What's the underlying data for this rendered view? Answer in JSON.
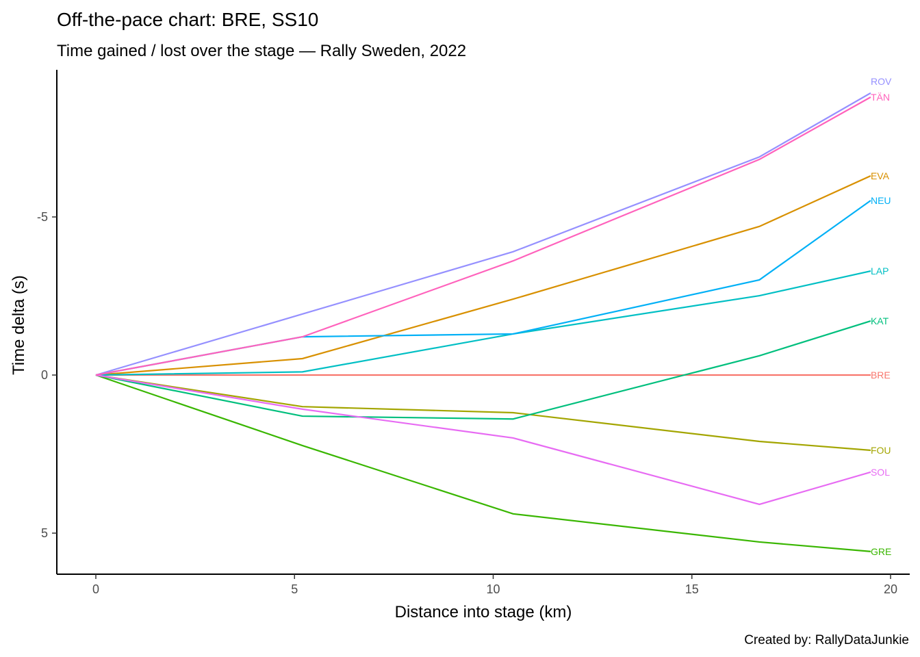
{
  "chart_data": {
    "type": "line",
    "title": "Off-the-pace chart: BRE, SS10",
    "subtitle": "Time gained / lost over the stage — Rally Sweden, 2022",
    "xlabel": "Distance into stage (km)",
    "ylabel": "Time delta (s)",
    "caption": "Created by: RallyDataJunkie",
    "xlim": [
      -1,
      20.5
    ],
    "ylim": [
      -9.8,
      6.3
    ],
    "y_reversed": true,
    "xticks": [
      0,
      5,
      10,
      15,
      20
    ],
    "yticks": [
      -5,
      0,
      5
    ],
    "grid": false,
    "legend": "direct labels at line ends",
    "x": [
      0,
      5.2,
      10.5,
      16.7,
      19.5
    ],
    "series": [
      {
        "name": "BRE",
        "color": "#F8766D",
        "values": [
          0,
          0,
          0,
          0,
          0
        ]
      },
      {
        "name": "EVA",
        "color": "#D89000",
        "values": [
          0,
          -0.52,
          -2.4,
          -4.7,
          -6.3
        ]
      },
      {
        "name": "FOU",
        "color": "#A3A500",
        "values": [
          0,
          1.0,
          1.19,
          2.1,
          2.38
        ]
      },
      {
        "name": "GRE",
        "color": "#39B600",
        "values": [
          0,
          2.23,
          4.39,
          5.28,
          5.58
        ]
      },
      {
        "name": "KAT",
        "color": "#00BF7D",
        "values": [
          0,
          1.3,
          1.39,
          -0.61,
          -1.71
        ]
      },
      {
        "name": "LAP",
        "color": "#00BFC4",
        "values": [
          0,
          -0.1,
          -1.3,
          -2.51,
          -3.29
        ]
      },
      {
        "name": "NEU",
        "color": "#00B0F6",
        "values": [
          0,
          -1.21,
          -1.3,
          -3.01,
          -5.52
        ]
      },
      {
        "name": "ROV",
        "color": "#9590FF",
        "values": [
          0,
          -1.93,
          -3.9,
          -6.9,
          -8.92
        ]
      },
      {
        "name": "SOL",
        "color": "#E76BF3",
        "values": [
          0,
          1.08,
          1.99,
          4.09,
          3.07
        ]
      },
      {
        "name": "TÄN",
        "color": "#FF62BC",
        "values": [
          0,
          -1.21,
          -3.61,
          -6.82,
          -8.79
        ]
      }
    ]
  }
}
